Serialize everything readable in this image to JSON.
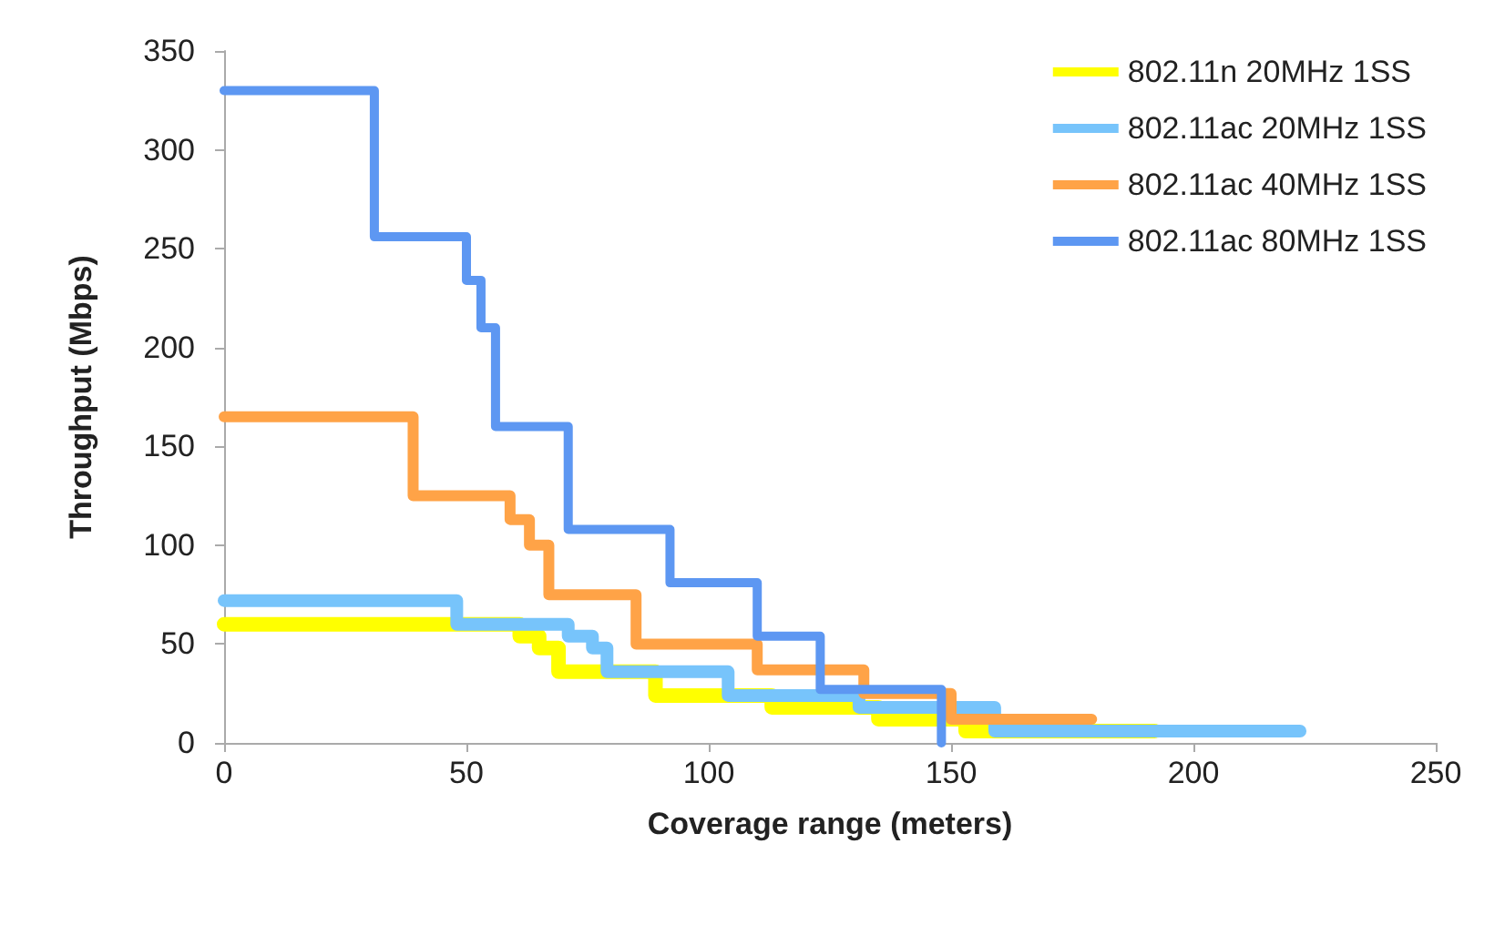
{
  "chart_data": {
    "type": "step",
    "xlabel": "Coverage range (meters)",
    "ylabel": "Throughput (Mbps)",
    "xlim": [
      0,
      250
    ],
    "ylim": [
      0,
      350
    ],
    "xticks": [
      0,
      50,
      100,
      150,
      200,
      250
    ],
    "yticks": [
      0,
      50,
      100,
      150,
      200,
      250,
      300,
      350
    ],
    "grid": false,
    "legend": "top right",
    "marker": "none",
    "line_style": "solid",
    "series": [
      {
        "name": "802.11n 20MHz 1SS",
        "color": "#ffff00",
        "x": [
          0,
          61,
          65,
          69,
          89,
          113,
          135,
          153,
          192
        ],
        "values": [
          60,
          54,
          48,
          36,
          24,
          18,
          12,
          6,
          6
        ]
      },
      {
        "name": "802.11ac 20MHz 1SS",
        "color": "#77c4fb",
        "x": [
          0,
          48,
          71,
          76,
          79,
          104,
          131,
          159,
          222
        ],
        "values": [
          72,
          60,
          54,
          48,
          36,
          24,
          18,
          6,
          6
        ]
      },
      {
        "name": "802.11ac 40MHz 1SS",
        "color": "#ffa347",
        "x": [
          0,
          39,
          59,
          63,
          67,
          85,
          110,
          132,
          150,
          179
        ],
        "values": [
          165,
          125,
          113,
          100,
          75,
          50,
          37,
          25,
          12,
          12
        ]
      },
      {
        "name": "802.11ac 80MHz 1SS",
        "color": "#5d97f2",
        "x": [
          0,
          31,
          50,
          53,
          56,
          71,
          92,
          110,
          123,
          148
        ],
        "values": [
          330,
          256,
          234,
          210,
          160,
          108,
          81,
          54,
          27,
          0
        ]
      }
    ]
  }
}
